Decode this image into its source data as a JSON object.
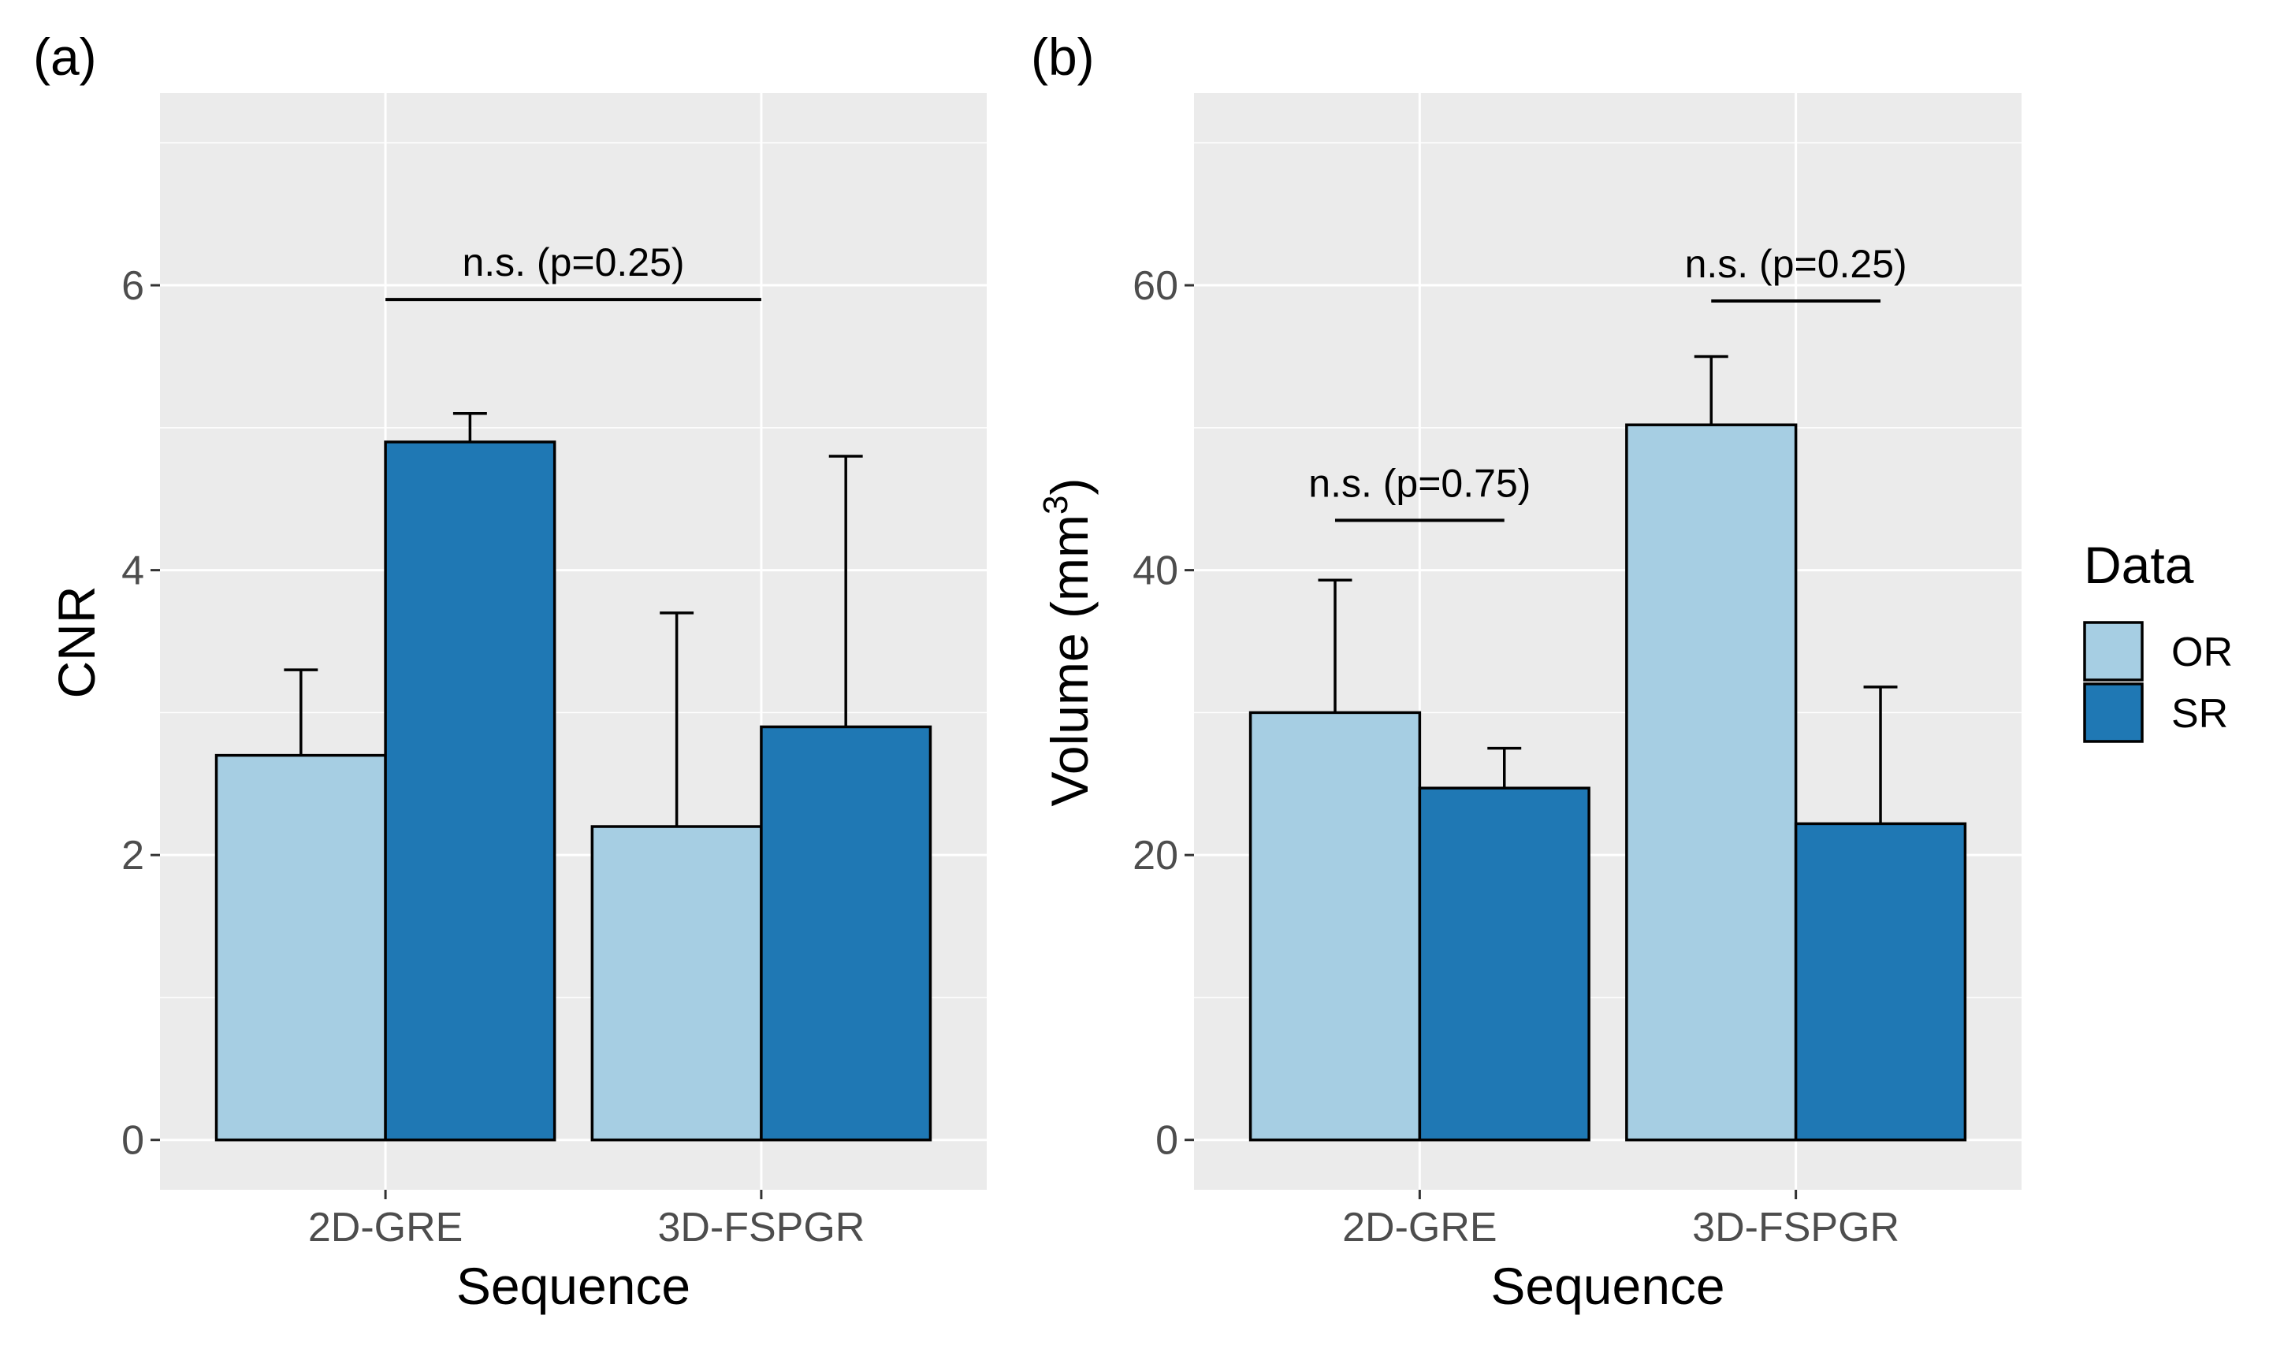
{
  "chart_data": [
    {
      "type": "bar",
      "panel_label": "(a)",
      "xlabel": "Sequence",
      "ylabel": "CNR",
      "ylim": [
        -0.35,
        7.35
      ],
      "yticks": [
        0,
        2,
        4,
        6
      ],
      "tick_labels": [
        "0",
        "2",
        "4",
        "6"
      ],
      "categories": [
        "2D-GRE",
        "3D-FSPGR"
      ],
      "series": [
        {
          "name": "OR",
          "values": [
            2.7,
            2.2
          ],
          "error_upper": [
            3.3,
            3.7
          ]
        },
        {
          "name": "SR",
          "values": [
            4.9,
            2.9
          ],
          "error_upper": [
            5.1,
            4.8
          ]
        }
      ],
      "annotations": [
        {
          "text": "n.s. (p=0.25)",
          "from_category": 0,
          "to_category": 1,
          "from_series": null,
          "to_series": null,
          "y": 5.9
        }
      ]
    },
    {
      "type": "bar",
      "panel_label": "(b)",
      "xlabel": "Sequence",
      "ylabel": "Volume (mm",
      "ylabel_superscript": "3",
      "ylabel_close": ")",
      "ylim": [
        -3.5,
        73.5
      ],
      "yticks": [
        0,
        20,
        40,
        60
      ],
      "tick_labels": [
        "0",
        "20",
        "40",
        "60"
      ],
      "categories": [
        "2D-GRE",
        "3D-FSPGR"
      ],
      "series": [
        {
          "name": "OR",
          "values": [
            30.0,
            50.2
          ],
          "error_upper": [
            39.3,
            55.0
          ]
        },
        {
          "name": "SR",
          "values": [
            24.7,
            22.2
          ],
          "error_upper": [
            27.5,
            31.8
          ]
        }
      ],
      "annotations": [
        {
          "text": "n.s. (p=0.75)",
          "category": 0,
          "y": 43.5
        },
        {
          "text": "n.s. (p=0.25)",
          "category": 1,
          "y": 58.9
        }
      ]
    }
  ],
  "legend": {
    "title": "Data",
    "items": [
      {
        "label": "OR",
        "color": "#a6cee3"
      },
      {
        "label": "SR",
        "color": "#1f78b4"
      }
    ]
  },
  "colors": {
    "OR": "#a6cee3",
    "SR": "#1f78b4"
  }
}
